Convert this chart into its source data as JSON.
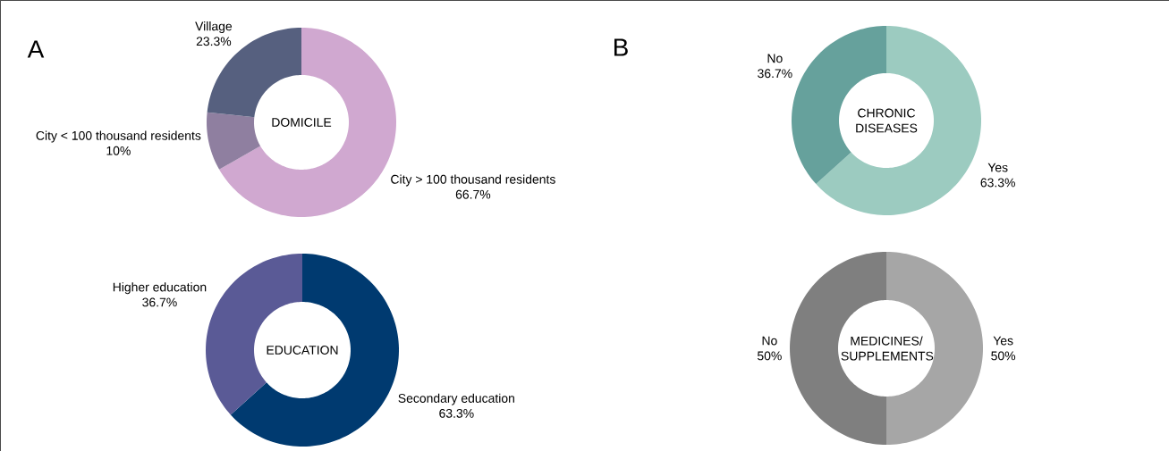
{
  "chart_data": [
    {
      "type": "donut",
      "title": "DOMICILE",
      "annotations": [
        "A"
      ],
      "categories": [
        "City > 100 thousand residents",
        "City < 100 thousand residents",
        "Village"
      ],
      "values": [
        66.7,
        10,
        23.3
      ],
      "value_labels": [
        "66.7%",
        "10%",
        "23.3%"
      ],
      "colors": [
        "#d0a8d0",
        "#8f7fa0",
        "#56607f"
      ]
    },
    {
      "type": "donut",
      "title": "EDUCATION",
      "categories": [
        "Secondary education",
        "Higher education"
      ],
      "values": [
        63.3,
        36.7
      ],
      "value_labels": [
        "63.3%",
        "36.7%"
      ],
      "colors": [
        "#003a70",
        "#5a5a96"
      ]
    },
    {
      "type": "donut",
      "title": "CHRONIC DISEASES",
      "annotations": [
        "B"
      ],
      "categories": [
        "Yes",
        "No"
      ],
      "values": [
        63.3,
        36.7
      ],
      "value_labels": [
        "63.3%",
        "36.7%"
      ],
      "colors": [
        "#9ccbc0",
        "#66a19c"
      ]
    },
    {
      "type": "donut",
      "title": "MEDICINES/ SUPPLEMENTS",
      "categories": [
        "Yes",
        "No"
      ],
      "values": [
        50,
        50
      ],
      "value_labels": [
        "50%",
        "50%"
      ],
      "colors": [
        "#a6a6a6",
        "#7f7f7f"
      ]
    }
  ]
}
